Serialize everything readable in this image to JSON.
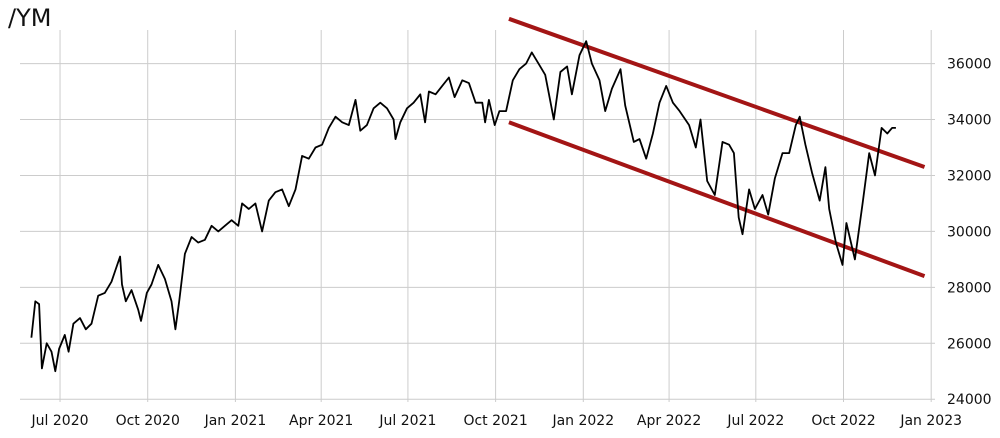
{
  "chart_data": {
    "type": "line",
    "title": "/YM",
    "xlabel": "",
    "ylabel": "",
    "grid": true,
    "x_ticks": [
      "Jul 2020",
      "Oct 2020",
      "Jan 2021",
      "Apr 2021",
      "Jul 2021",
      "Oct 2021",
      "Jan 2022",
      "Apr 2022",
      "Jul 2022",
      "Oct 2022",
      "Jan 2023"
    ],
    "y_ticks": [
      24000,
      26000,
      28000,
      30000,
      32000,
      34000,
      36000
    ],
    "ylim": [
      23900,
      37200
    ],
    "xlim": [
      "2020-05-20",
      "2023-01-05"
    ],
    "series": [
      {
        "color": "#000000",
        "points": [
          [
            "2020-06-01",
            26200
          ],
          [
            "2020-06-05",
            27500
          ],
          [
            "2020-06-09",
            27400
          ],
          [
            "2020-06-12",
            25100
          ],
          [
            "2020-06-17",
            26000
          ],
          [
            "2020-06-22",
            25700
          ],
          [
            "2020-06-26",
            25000
          ],
          [
            "2020-06-30",
            25800
          ],
          [
            "2020-07-06",
            26300
          ],
          [
            "2020-07-10",
            25700
          ],
          [
            "2020-07-15",
            26700
          ],
          [
            "2020-07-22",
            26900
          ],
          [
            "2020-07-28",
            26500
          ],
          [
            "2020-08-03",
            26700
          ],
          [
            "2020-08-10",
            27700
          ],
          [
            "2020-08-17",
            27800
          ],
          [
            "2020-08-24",
            28200
          ],
          [
            "2020-08-28",
            28600
          ],
          [
            "2020-09-02",
            29100
          ],
          [
            "2020-09-04",
            28100
          ],
          [
            "2020-09-08",
            27500
          ],
          [
            "2020-09-14",
            27900
          ],
          [
            "2020-09-21",
            27200
          ],
          [
            "2020-09-24",
            26800
          ],
          [
            "2020-09-30",
            27800
          ],
          [
            "2020-10-05",
            28100
          ],
          [
            "2020-10-12",
            28800
          ],
          [
            "2020-10-19",
            28300
          ],
          [
            "2020-10-26",
            27500
          ],
          [
            "2020-10-30",
            26500
          ],
          [
            "2020-11-03",
            27500
          ],
          [
            "2020-11-09",
            29200
          ],
          [
            "2020-11-16",
            29800
          ],
          [
            "2020-11-23",
            29600
          ],
          [
            "2020-11-30",
            29700
          ],
          [
            "2020-12-07",
            30200
          ],
          [
            "2020-12-14",
            30000
          ],
          [
            "2020-12-21",
            30200
          ],
          [
            "2020-12-28",
            30400
          ],
          [
            "2021-01-04",
            30200
          ],
          [
            "2021-01-08",
            31000
          ],
          [
            "2021-01-15",
            30800
          ],
          [
            "2021-01-22",
            31000
          ],
          [
            "2021-01-29",
            30000
          ],
          [
            "2021-02-05",
            31100
          ],
          [
            "2021-02-12",
            31400
          ],
          [
            "2021-02-19",
            31500
          ],
          [
            "2021-02-26",
            30900
          ],
          [
            "2021-03-05",
            31500
          ],
          [
            "2021-03-12",
            32700
          ],
          [
            "2021-03-19",
            32600
          ],
          [
            "2021-03-26",
            33000
          ],
          [
            "2021-04-02",
            33100
          ],
          [
            "2021-04-09",
            33700
          ],
          [
            "2021-04-16",
            34100
          ],
          [
            "2021-04-23",
            33900
          ],
          [
            "2021-04-30",
            33800
          ],
          [
            "2021-05-07",
            34700
          ],
          [
            "2021-05-12",
            33600
          ],
          [
            "2021-05-19",
            33800
          ],
          [
            "2021-05-26",
            34400
          ],
          [
            "2021-06-02",
            34600
          ],
          [
            "2021-06-09",
            34400
          ],
          [
            "2021-06-16",
            34000
          ],
          [
            "2021-06-18",
            33300
          ],
          [
            "2021-06-23",
            33900
          ],
          [
            "2021-06-30",
            34400
          ],
          [
            "2021-07-07",
            34600
          ],
          [
            "2021-07-14",
            34900
          ],
          [
            "2021-07-19",
            33900
          ],
          [
            "2021-07-23",
            35000
          ],
          [
            "2021-07-30",
            34900
          ],
          [
            "2021-08-06",
            35200
          ],
          [
            "2021-08-13",
            35500
          ],
          [
            "2021-08-19",
            34800
          ],
          [
            "2021-08-27",
            35400
          ],
          [
            "2021-09-03",
            35300
          ],
          [
            "2021-09-10",
            34600
          ],
          [
            "2021-09-17",
            34600
          ],
          [
            "2021-09-20",
            33900
          ],
          [
            "2021-09-24",
            34700
          ],
          [
            "2021-09-30",
            33800
          ],
          [
            "2021-10-05",
            34300
          ],
          [
            "2021-10-12",
            34300
          ],
          [
            "2021-10-19",
            35400
          ],
          [
            "2021-10-26",
            35800
          ],
          [
            "2021-11-02",
            36000
          ],
          [
            "2021-11-08",
            36400
          ],
          [
            "2021-11-15",
            36000
          ],
          [
            "2021-11-22",
            35600
          ],
          [
            "2021-11-26",
            34900
          ],
          [
            "2021-12-01",
            34000
          ],
          [
            "2021-12-08",
            35700
          ],
          [
            "2021-12-15",
            35900
          ],
          [
            "2021-12-20",
            34900
          ],
          [
            "2021-12-28",
            36300
          ],
          [
            "2022-01-04",
            36800
          ],
          [
            "2022-01-10",
            36000
          ],
          [
            "2022-01-18",
            35400
          ],
          [
            "2022-01-24",
            34300
          ],
          [
            "2022-01-31",
            35100
          ],
          [
            "2022-02-09",
            35800
          ],
          [
            "2022-02-14",
            34500
          ],
          [
            "2022-02-23",
            33200
          ],
          [
            "2022-03-01",
            33300
          ],
          [
            "2022-03-08",
            32600
          ],
          [
            "2022-03-15",
            33500
          ],
          [
            "2022-03-22",
            34600
          ],
          [
            "2022-03-29",
            35200
          ],
          [
            "2022-04-05",
            34600
          ],
          [
            "2022-04-12",
            34300
          ],
          [
            "2022-04-22",
            33800
          ],
          [
            "2022-04-29",
            33000
          ],
          [
            "2022-05-04",
            34000
          ],
          [
            "2022-05-11",
            31800
          ],
          [
            "2022-05-19",
            31300
          ],
          [
            "2022-05-27",
            33200
          ],
          [
            "2022-06-03",
            33100
          ],
          [
            "2022-06-08",
            32800
          ],
          [
            "2022-06-13",
            30500
          ],
          [
            "2022-06-17",
            29900
          ],
          [
            "2022-06-24",
            31500
          ],
          [
            "2022-06-30",
            30800
          ],
          [
            "2022-07-08",
            31300
          ],
          [
            "2022-07-14",
            30600
          ],
          [
            "2022-07-21",
            31900
          ],
          [
            "2022-07-29",
            32800
          ],
          [
            "2022-08-05",
            32800
          ],
          [
            "2022-08-12",
            33800
          ],
          [
            "2022-08-16",
            34100
          ],
          [
            "2022-08-22",
            33100
          ],
          [
            "2022-08-29",
            32100
          ],
          [
            "2022-09-06",
            31100
          ],
          [
            "2022-09-12",
            32300
          ],
          [
            "2022-09-16",
            30800
          ],
          [
            "2022-09-23",
            29600
          ],
          [
            "2022-09-30",
            28800
          ],
          [
            "2022-10-04",
            30300
          ],
          [
            "2022-10-13",
            29000
          ],
          [
            "2022-10-21",
            31000
          ],
          [
            "2022-10-28",
            32800
          ],
          [
            "2022-11-03",
            32000
          ],
          [
            "2022-11-10",
            33700
          ],
          [
            "2022-11-16",
            33500
          ],
          [
            "2022-11-21",
            33700
          ],
          [
            "2022-11-25",
            33700
          ]
        ]
      }
    ],
    "trendlines": [
      {
        "color": "#a31515",
        "from": [
          "2021-10-15",
          37600
        ],
        "to": [
          "2022-12-25",
          32300
        ]
      },
      {
        "color": "#a31515",
        "from": [
          "2021-10-15",
          33900
        ],
        "to": [
          "2022-12-25",
          28400
        ]
      }
    ]
  }
}
